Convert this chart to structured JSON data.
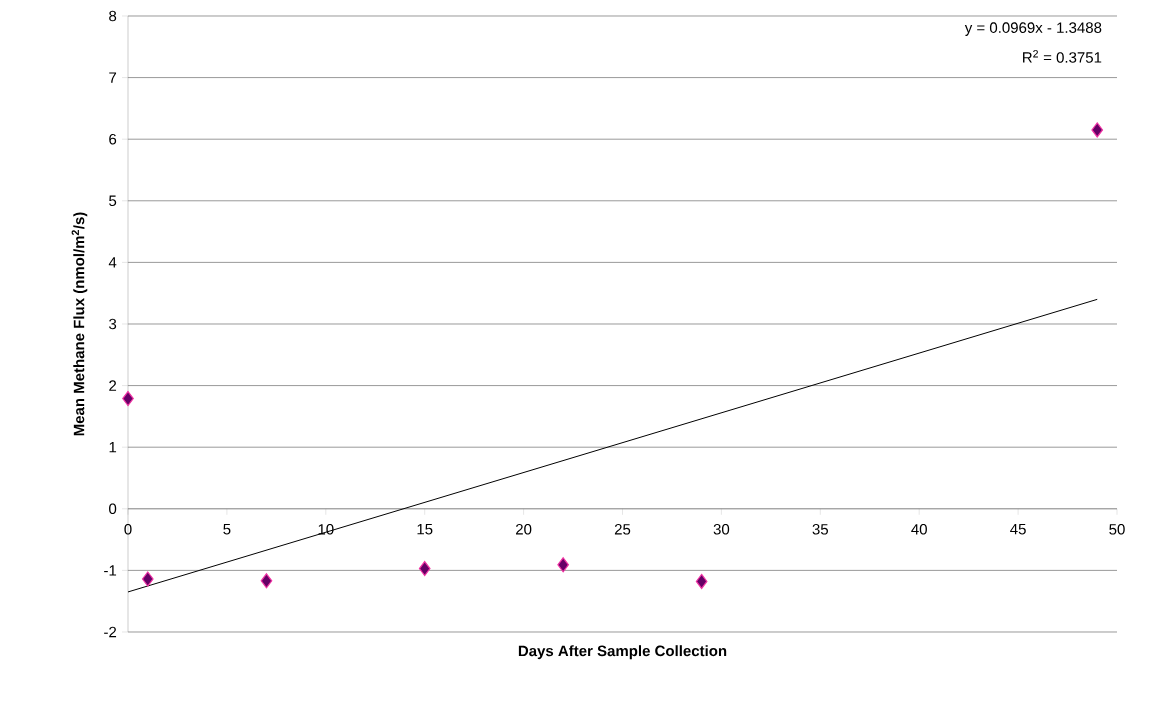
{
  "chart_data": {
    "type": "scatter",
    "xlabel": "Days After Sample Collection",
    "ylabel": "Mean Methane Flux (nmol/m$^{2}$/s)",
    "annotations": [
      "y = 0.0969x - 1.3488",
      "R$^{2}$ = 0.3751"
    ],
    "series": [
      {
        "color": "#660066",
        "marker": "diamond",
        "x": [
          0,
          1,
          7,
          15,
          22,
          29,
          49
        ],
        "values": [
          1.79,
          -1.14,
          -1.17,
          -0.97,
          -0.91,
          -1.18,
          6.15
        ]
      },
      {
        "type": "line",
        "color": "#000000",
        "x": [
          0,
          49
        ],
        "values": [
          -1.35,
          3.4
        ]
      }
    ],
    "xlim": [
      0,
      50
    ],
    "ylim": [
      -2,
      8
    ],
    "xticks": [
      0,
      5,
      10,
      15,
      20,
      25,
      30,
      35,
      40,
      45,
      50
    ],
    "yticks": [
      -2,
      -1,
      0,
      1,
      2,
      3,
      4,
      5,
      6,
      7,
      8
    ],
    "grid": "y"
  }
}
